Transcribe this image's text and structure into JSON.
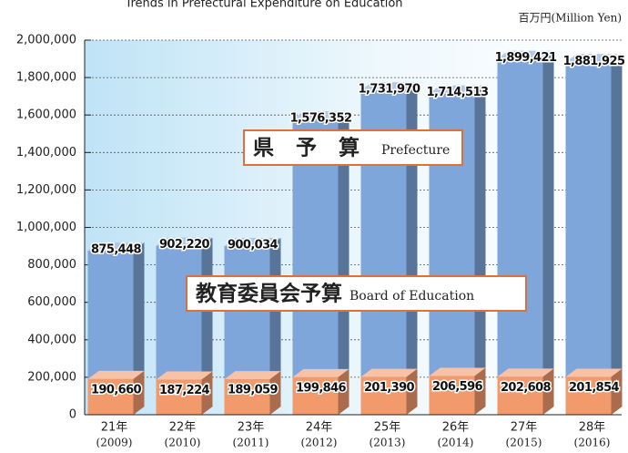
{
  "chart_data": {
    "type": "bar",
    "title": "Trends in Prefectural Expenditure on Education",
    "unit_label": "百万円(Million Yen)",
    "categories": [
      "21年",
      "22年",
      "23年",
      "24年",
      "25年",
      "26年",
      "27年",
      "28年"
    ],
    "category_years": [
      "(2009)",
      "(2010)",
      "(2011)",
      "(2012)",
      "(2013)",
      "(2014)",
      "(2015)",
      "(2016)"
    ],
    "series": [
      {
        "name": "県 予 算",
        "name_en": "Prefecture",
        "color": "#7ea6db",
        "values": [
          875448,
          902220,
          900034,
          1576352,
          1731970,
          1714513,
          1899421,
          1881925
        ],
        "value_labels": [
          "875,448",
          "902,220",
          "900,034",
          "1,576,352",
          "1,731,970",
          "1,714,513",
          "1,899,421",
          "1,881,925"
        ]
      },
      {
        "name": "教育委員会予算",
        "name_en": "Board of Education",
        "color": "#f39a6c",
        "values": [
          190660,
          187224,
          189059,
          199846,
          201390,
          206596,
          202608,
          201854
        ],
        "value_labels": [
          "190,660",
          "187,224",
          "189,059",
          "199,846",
          "201,390",
          "206,596",
          "202,608",
          "201,854"
        ]
      }
    ],
    "ylim": [
      0,
      2000000
    ],
    "yticks": [
      0,
      {
        "value": 200000,
        "label": "200,000"
      },
      {
        "value": 400000,
        "label": "400,000"
      },
      {
        "value": 600000,
        "label": "600,000"
      },
      {
        "value": 800000,
        "label": "800,000"
      },
      {
        "value": 1000000,
        "label": "1,000,000"
      },
      {
        "value": 1200000,
        "label": "1,200,000"
      },
      {
        "value": 1400000,
        "label": "1,400,000"
      },
      {
        "value": 1600000,
        "label": "1,600,000"
      },
      {
        "value": 1800000,
        "label": "1,800,000"
      },
      {
        "value": 2000000,
        "label": "2,000,000"
      }
    ],
    "grid": true
  }
}
